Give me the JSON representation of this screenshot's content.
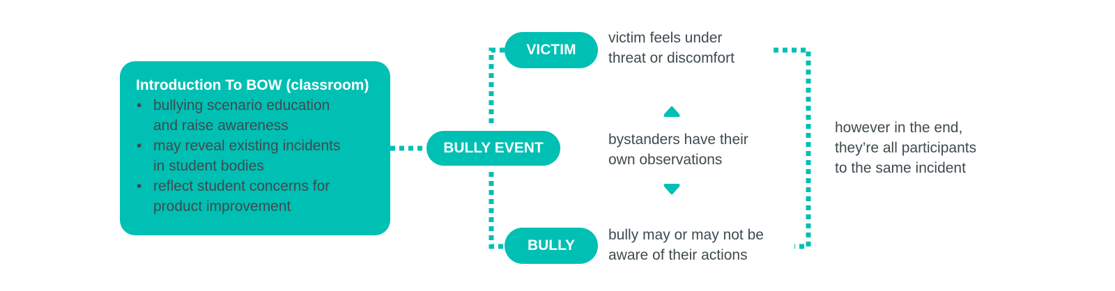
{
  "intro": {
    "title": "Introduction To BOW (classroom)",
    "bullets": [
      {
        "line1": "bullying scenario education",
        "line2": "and raise awareness"
      },
      {
        "line1": "may reveal existing incidents",
        "line2": "in student bodies"
      },
      {
        "line1": "reflect student concerns for",
        "line2": "product improvement"
      }
    ],
    "bullet_glyph": "•"
  },
  "nodes": {
    "bully_event": "BULLY EVENT",
    "victim": "VICTIM",
    "bully": "BULLY"
  },
  "descriptions": {
    "victim": {
      "line1": "victim feels under",
      "line2": "threat or discomfort"
    },
    "bystanders": {
      "line1": "bystanders have their",
      "line2": "own observations"
    },
    "bully": {
      "line1": "bully may or may not be",
      "line2": "aware of their actions"
    }
  },
  "conclusion": {
    "line1": "however in the end,",
    "line2": "they’re all participants",
    "line3": "to the same incident"
  },
  "colors": {
    "accent": "#00BFB3",
    "text": "#3f4a4f",
    "white": "#ffffff"
  },
  "icons": [
    "up-triangle-icon",
    "down-triangle-icon"
  ]
}
